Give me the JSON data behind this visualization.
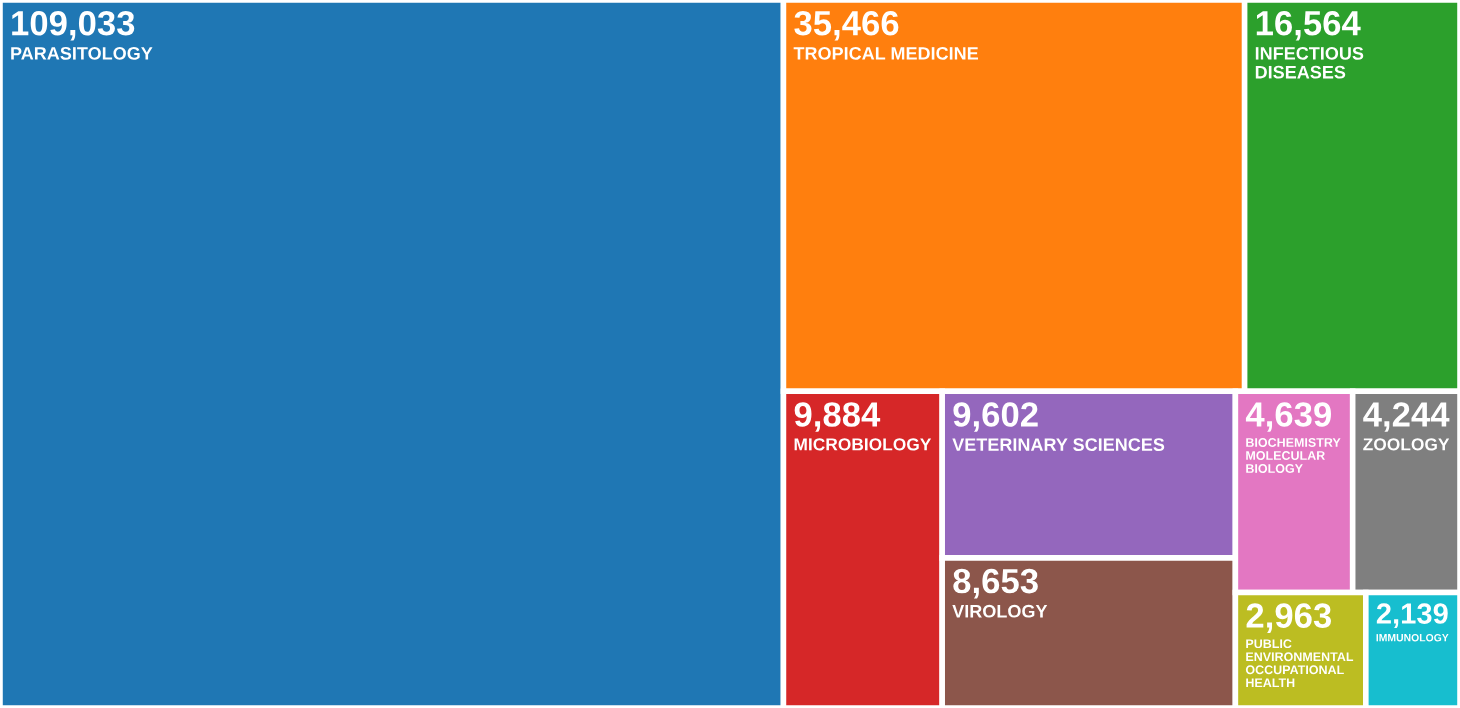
{
  "chart_data": {
    "type": "other",
    "categories": [
      "PARASITOLOGY",
      "TROPICAL MEDICINE",
      "INFECTIOUS DISEASES",
      "MICROBIOLOGY",
      "VETERINARY SCIENCES",
      "VIROLOGY",
      "BIOCHEMISTRY MOLECULAR BIOLOGY",
      "ZOOLOGY",
      "PUBLIC ENVIRONMENTAL OCCUPATIONAL HEALTH",
      "IMMUNOLOGY"
    ],
    "values": [
      109033,
      35466,
      16564,
      9884,
      9602,
      8653,
      4639,
      4244,
      2963,
      2139
    ],
    "value_labels": [
      "109,033",
      "35,466",
      "16,564",
      "9,884",
      "9,602",
      "8,653",
      "4,639",
      "4,244",
      "2,963",
      "2,139"
    ],
    "colors": [
      "#1f77b4",
      "#ff7f0e",
      "#2ca02c",
      "#d62728",
      "#9467bd",
      "#8c564b",
      "#e377c2",
      "#7f7f7f",
      "#bcbd22",
      "#17becf"
    ]
  }
}
